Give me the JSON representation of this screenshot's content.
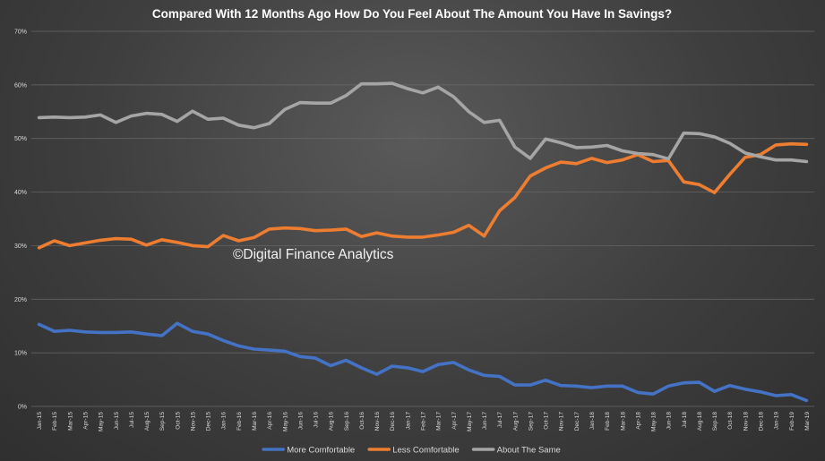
{
  "chart_data": {
    "type": "line",
    "title": "Compared With 12 Months Ago How Do You Feel About The Amount You Have In Savings?",
    "watermark": "©Digital Finance Analytics",
    "xlabel": "",
    "ylabel": "",
    "ylim": [
      0,
      70
    ],
    "yticks": [
      "0%",
      "10%",
      "20%",
      "30%",
      "40%",
      "50%",
      "60%",
      "70%"
    ],
    "grid": true,
    "legend_position": "bottom",
    "categories": [
      "Jan-15",
      "Feb-15",
      "Mar-15",
      "Apr-15",
      "May-15",
      "Jun-15",
      "Jul-15",
      "Aug-15",
      "Sep-15",
      "Oct-15",
      "Nov-15",
      "Dec-15",
      "Jan-16",
      "Feb-16",
      "Mar-16",
      "Apr-16",
      "May-16",
      "Jun-16",
      "Jul-16",
      "Aug-16",
      "Sep-16",
      "Oct-16",
      "Nov-16",
      "Dec-16",
      "Jan-17",
      "Feb-17",
      "Mar-17",
      "Apr-17",
      "May-17",
      "Jun-17",
      "Jul-17",
      "Aug-17",
      "Sep-17",
      "Oct-17",
      "Nov-17",
      "Dec-17",
      "Jan-18",
      "Feb-18",
      "Mar-18",
      "Apr-18",
      "May-18",
      "Jun-18",
      "Jul-18",
      "Aug-18",
      "Sep-18",
      "Oct-18",
      "Nov-18",
      "Dec-18",
      "Jan-19",
      "Feb-19",
      "Mar-19"
    ],
    "series": [
      {
        "name": "More Comfortable",
        "color": "#4472c4",
        "values": [
          15.3,
          14.0,
          14.2,
          13.9,
          13.8,
          13.8,
          13.9,
          13.5,
          13.2,
          15.5,
          14.0,
          13.5,
          12.3,
          11.3,
          10.7,
          10.5,
          10.3,
          9.3,
          9.0,
          7.6,
          8.6,
          7.2,
          6.0,
          7.5,
          7.2,
          6.5,
          7.8,
          8.2,
          6.8,
          5.8,
          5.6,
          4.0,
          4.0,
          4.9,
          3.9,
          3.8,
          3.5,
          3.8,
          3.8,
          2.6,
          2.3,
          3.8,
          4.4,
          4.5,
          2.8,
          3.9,
          3.2,
          2.7,
          2.0,
          2.2,
          1.1
        ]
      },
      {
        "name": "Less Comfortable",
        "color": "#ed7d31",
        "values": [
          29.6,
          30.9,
          30.0,
          30.5,
          31.0,
          31.3,
          31.2,
          30.1,
          31.1,
          30.6,
          30.0,
          29.8,
          31.9,
          30.9,
          31.5,
          33.1,
          33.3,
          33.2,
          32.8,
          32.9,
          33.1,
          31.7,
          32.4,
          31.8,
          31.6,
          31.6,
          32.0,
          32.5,
          33.8,
          31.8,
          36.5,
          39.0,
          43.0,
          44.5,
          45.6,
          45.3,
          46.3,
          45.5,
          46.0,
          47.0,
          45.7,
          45.9,
          41.9,
          41.4,
          39.9,
          43.3,
          46.5,
          47.0,
          48.8,
          49.0,
          48.9
        ]
      },
      {
        "name": "About The Same",
        "color": "#a5a5a5",
        "values": [
          53.9,
          54.0,
          53.9,
          54.0,
          54.4,
          53.0,
          54.2,
          54.7,
          54.5,
          53.2,
          55.1,
          53.6,
          53.8,
          52.5,
          52.0,
          52.8,
          55.4,
          56.7,
          56.6,
          56.6,
          58.0,
          60.2,
          60.2,
          60.3,
          59.3,
          58.5,
          59.6,
          57.8,
          55.0,
          53.0,
          53.4,
          48.4,
          46.3,
          49.9,
          49.2,
          48.3,
          48.4,
          48.7,
          47.7,
          47.2,
          47.0,
          46.2,
          51.0,
          50.9,
          50.3,
          49.1,
          47.3,
          46.6,
          46.0,
          46.0,
          45.7
        ]
      }
    ]
  }
}
